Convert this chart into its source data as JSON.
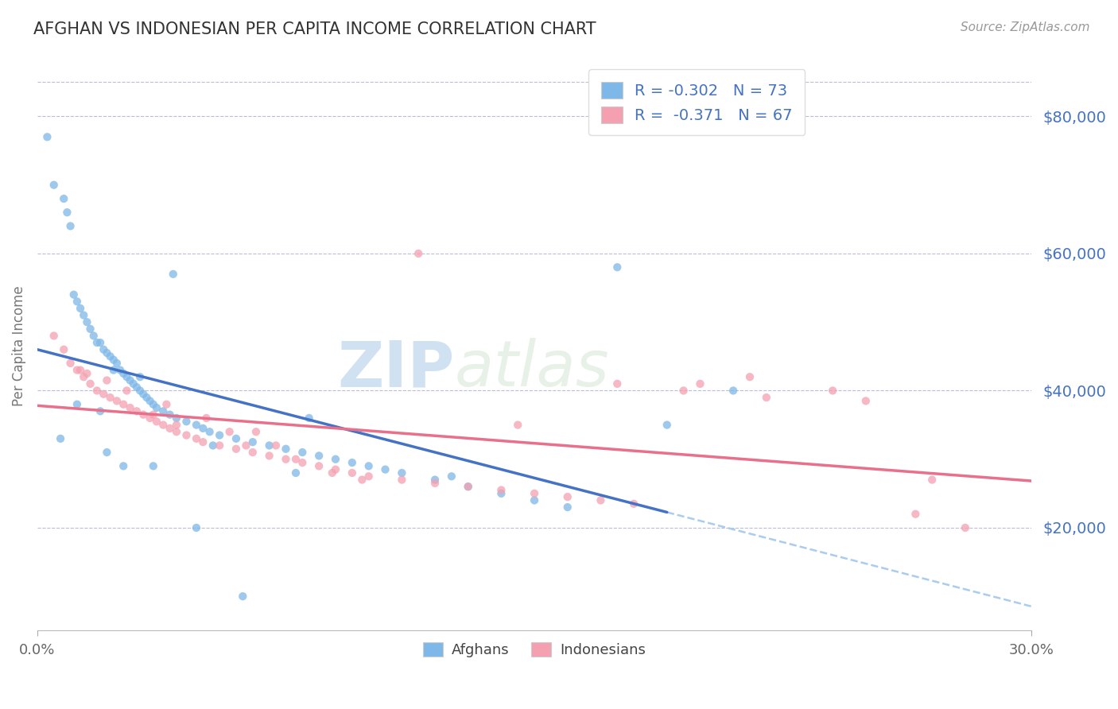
{
  "title": "AFGHAN VS INDONESIAN PER CAPITA INCOME CORRELATION CHART",
  "source": "Source: ZipAtlas.com",
  "ylabel": "Per Capita Income",
  "yticks": [
    20000,
    40000,
    60000,
    80000
  ],
  "ytick_labels": [
    "$20,000",
    "$40,000",
    "$60,000",
    "$80,000"
  ],
  "xmin": 0.0,
  "xmax": 30.0,
  "ymin": 5000,
  "ymax": 88000,
  "afghan_color": "#7EB8E8",
  "indonesian_color": "#F4A0B0",
  "afghan_line_color": "#4472C4",
  "indonesian_line_color": "#E8708A",
  "dash_color": "#AACCEE",
  "title_color": "#333333",
  "axis_label_color": "#4472C4",
  "background_color": "#FFFFFF",
  "scatter_alpha": 0.75,
  "scatter_size": 55,
  "afghan_points_x": [
    0.3,
    0.5,
    0.8,
    0.9,
    1.0,
    1.1,
    1.2,
    1.3,
    1.4,
    1.5,
    1.6,
    1.7,
    1.8,
    1.9,
    2.0,
    2.1,
    2.2,
    2.3,
    2.4,
    2.5,
    2.6,
    2.7,
    2.8,
    2.9,
    3.0,
    3.1,
    3.2,
    3.3,
    3.4,
    3.5,
    3.6,
    3.8,
    4.0,
    4.2,
    4.5,
    4.8,
    5.0,
    5.2,
    5.5,
    6.0,
    6.5,
    7.0,
    7.5,
    8.0,
    8.5,
    9.0,
    9.5,
    10.0,
    10.5,
    11.0,
    12.0,
    13.0,
    14.0,
    15.0,
    16.0,
    17.5,
    19.0,
    21.0,
    1.2,
    0.7,
    2.1,
    3.5,
    4.8,
    6.2,
    7.8,
    2.3,
    1.9,
    3.1,
    2.6,
    4.1,
    5.3,
    8.2,
    12.5
  ],
  "afghan_points_y": [
    77000,
    70000,
    68000,
    66000,
    64000,
    54000,
    53000,
    52000,
    51000,
    50000,
    49000,
    48000,
    47000,
    47000,
    46000,
    45500,
    45000,
    44500,
    44000,
    43000,
    42500,
    42000,
    41500,
    41000,
    40500,
    40000,
    39500,
    39000,
    38500,
    38000,
    37500,
    37000,
    36500,
    36000,
    35500,
    35000,
    34500,
    34000,
    33500,
    33000,
    32500,
    32000,
    31500,
    31000,
    30500,
    30000,
    29500,
    29000,
    28500,
    28000,
    27000,
    26000,
    25000,
    24000,
    23000,
    58000,
    35000,
    40000,
    38000,
    33000,
    31000,
    29000,
    20000,
    10000,
    28000,
    43000,
    37000,
    42000,
    29000,
    57000,
    32000,
    36000,
    27500
  ],
  "indonesian_points_x": [
    0.5,
    0.8,
    1.0,
    1.2,
    1.4,
    1.6,
    1.8,
    2.0,
    2.2,
    2.4,
    2.6,
    2.8,
    3.0,
    3.2,
    3.4,
    3.6,
    3.8,
    4.0,
    4.2,
    4.5,
    4.8,
    5.0,
    5.5,
    6.0,
    6.5,
    7.0,
    7.5,
    8.0,
    8.5,
    9.0,
    9.5,
    10.0,
    11.0,
    12.0,
    13.0,
    14.0,
    15.0,
    16.0,
    17.0,
    18.0,
    20.0,
    22.0,
    25.0,
    27.0,
    1.5,
    2.1,
    3.5,
    4.2,
    5.8,
    6.3,
    7.8,
    8.9,
    1.3,
    2.7,
    3.9,
    5.1,
    6.6,
    7.2,
    9.8,
    11.5,
    14.5,
    17.5,
    19.5,
    21.5,
    24.0,
    26.5,
    28.0
  ],
  "indonesian_points_y": [
    48000,
    46000,
    44000,
    43000,
    42000,
    41000,
    40000,
    39500,
    39000,
    38500,
    38000,
    37500,
    37000,
    36500,
    36000,
    35500,
    35000,
    34500,
    34000,
    33500,
    33000,
    32500,
    32000,
    31500,
    31000,
    30500,
    30000,
    29500,
    29000,
    28500,
    28000,
    27500,
    27000,
    26500,
    26000,
    25500,
    25000,
    24500,
    24000,
    23500,
    41000,
    39000,
    38500,
    27000,
    42500,
    41500,
    36500,
    35000,
    34000,
    32000,
    30000,
    28000,
    43000,
    40000,
    38000,
    36000,
    34000,
    32000,
    27000,
    60000,
    35000,
    41000,
    40000,
    42000,
    40000,
    22000,
    20000
  ],
  "legend_R_afghan": "-0.302",
  "legend_N_afghan": "73",
  "legend_R_indonesian": "-0.371",
  "legend_N_indonesian": "67",
  "watermark_zip": "ZIP",
  "watermark_atlas": "atlas"
}
